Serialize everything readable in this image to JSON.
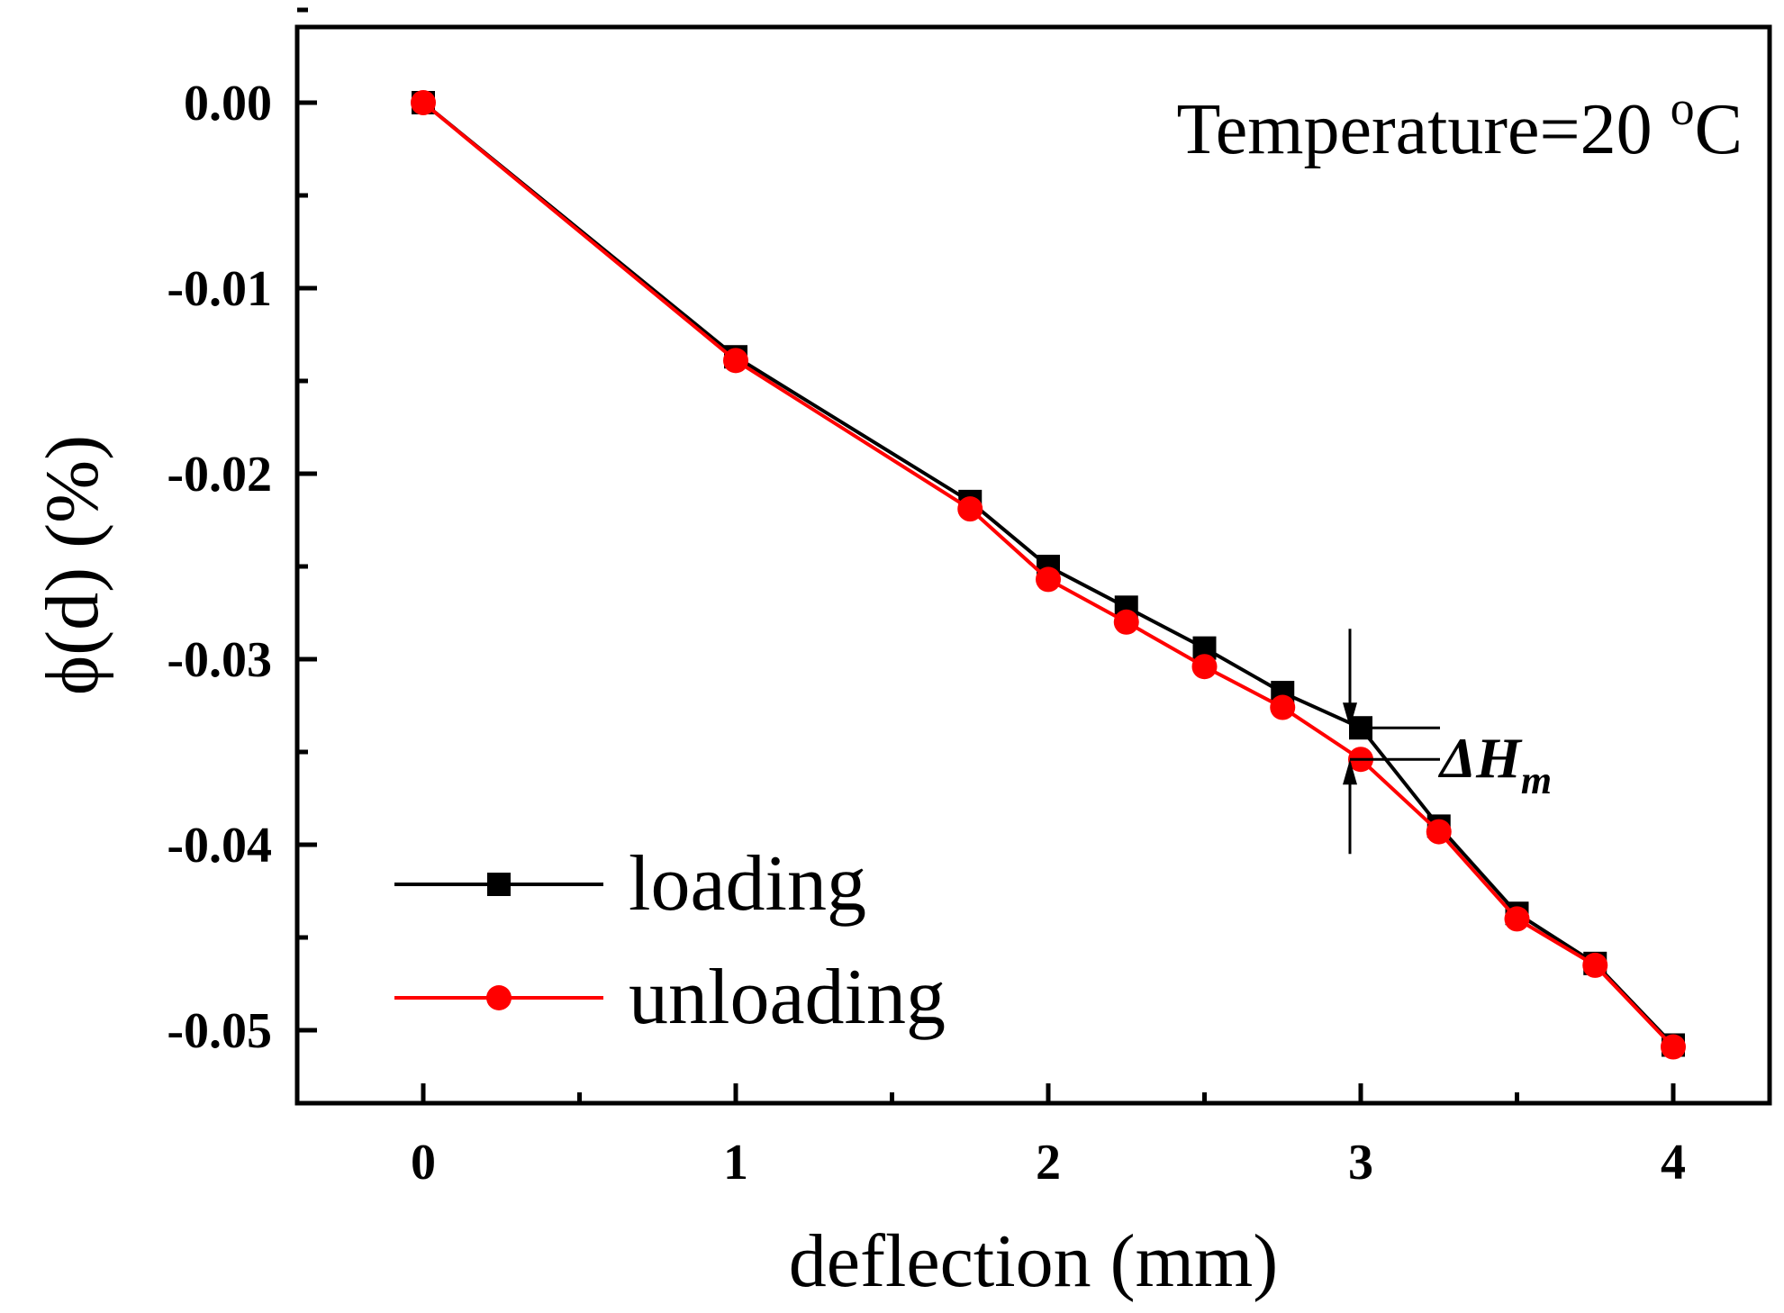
{
  "chart_data": {
    "type": "line",
    "title": "",
    "xlabel": "deflection (mm)",
    "ylabel": "ϕ(d) (%)",
    "xlim": [
      -0.4,
      4.3
    ],
    "ylim": [
      -0.054,
      0.004
    ],
    "xticks": [
      0,
      1,
      2,
      3,
      4
    ],
    "xtick_labels": [
      "0",
      "1",
      "2",
      "3",
      "4"
    ],
    "yticks": [
      0.0,
      -0.01,
      -0.02,
      -0.03,
      -0.04,
      -0.05
    ],
    "ytick_labels": [
      "0.00",
      "-0.01",
      "-0.02",
      "-0.03",
      "-0.04",
      "-0.05"
    ],
    "grid": false,
    "legend_position": "bottom-left",
    "series": [
      {
        "name": "loading",
        "color": "#000000",
        "marker": "square",
        "x": [
          0,
          1,
          1.75,
          2,
          2.25,
          2.5,
          2.75,
          3,
          3.25,
          3.5,
          3.75,
          4
        ],
        "y": [
          0.0,
          -0.0137,
          -0.0215,
          -0.025,
          -0.0272,
          -0.0294,
          -0.0318,
          -0.0337,
          -0.039,
          -0.0437,
          -0.0464,
          -0.0508
        ]
      },
      {
        "name": "unloading",
        "color": "#ff0000",
        "marker": "circle",
        "x": [
          0,
          1,
          1.75,
          2,
          2.25,
          2.5,
          2.75,
          3,
          3.25,
          3.5,
          3.75,
          4
        ],
        "y": [
          0.0,
          -0.0139,
          -0.0219,
          -0.0257,
          -0.028,
          -0.0304,
          -0.0326,
          -0.0354,
          -0.0393,
          -0.044,
          -0.0465,
          -0.0509
        ]
      }
    ],
    "annotations": {
      "temperature_prefix": "Temperature=20 ",
      "temperature_sup": "o",
      "temperature_suffix": "C",
      "delta_label_main": "ΔH",
      "delta_label_sub": "m",
      "delta_x": 3
    }
  }
}
